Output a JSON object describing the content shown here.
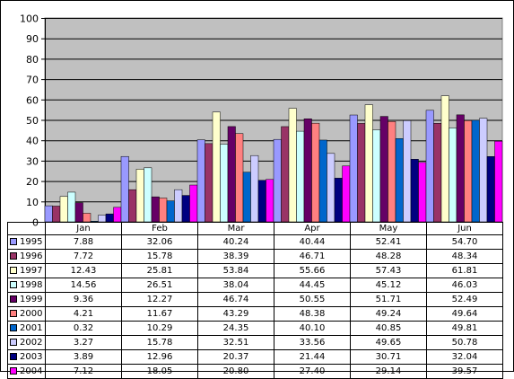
{
  "chart_data": {
    "type": "bar",
    "categories": [
      "Jan",
      "Feb",
      "Mar",
      "Apr",
      "May",
      "Jun"
    ],
    "ylim": [
      0,
      100
    ],
    "yticks": [
      0,
      10,
      20,
      30,
      40,
      50,
      60,
      70,
      80,
      90,
      100
    ],
    "grid": true,
    "legend": "data-table",
    "plot_background": "#C0C0C0",
    "series": [
      {
        "name": "1995",
        "color": "#9999FF",
        "values": [
          7.88,
          32.06,
          40.24,
          40.44,
          52.41,
          54.7
        ],
        "labels": [
          "7.88",
          "32.06",
          "40.24",
          "40.44",
          "52.41",
          "54.70"
        ]
      },
      {
        "name": "1996",
        "color": "#993366",
        "values": [
          7.72,
          15.78,
          38.39,
          46.71,
          48.28,
          48.34
        ],
        "labels": [
          "7.72",
          "15.78",
          "38.39",
          "46.71",
          "48.28",
          "48.34"
        ]
      },
      {
        "name": "1997",
        "color": "#FFFFCC",
        "values": [
          12.43,
          25.81,
          53.84,
          55.66,
          57.43,
          61.81
        ],
        "labels": [
          "12.43",
          "25.81",
          "53.84",
          "55.66",
          "57.43",
          "61.81"
        ]
      },
      {
        "name": "1998",
        "color": "#CCFFFF",
        "values": [
          14.56,
          26.51,
          38.04,
          44.45,
          45.12,
          46.03
        ],
        "labels": [
          "14.56",
          "26.51",
          "38.04",
          "44.45",
          "45.12",
          "46.03"
        ]
      },
      {
        "name": "1999",
        "color": "#660066",
        "values": [
          9.36,
          12.27,
          46.74,
          50.55,
          51.71,
          52.49
        ],
        "labels": [
          "9.36",
          "12.27",
          "46.74",
          "50.55",
          "51.71",
          "52.49"
        ]
      },
      {
        "name": "2000",
        "color": "#FF8080",
        "values": [
          4.21,
          11.67,
          43.29,
          48.38,
          49.24,
          49.64
        ],
        "labels": [
          "4.21",
          "11.67",
          "43.29",
          "48.38",
          "49.24",
          "49.64"
        ]
      },
      {
        "name": "2001",
        "color": "#0066CC",
        "values": [
          0.32,
          10.29,
          24.35,
          40.1,
          40.85,
          49.81
        ],
        "labels": [
          "0.32",
          "10.29",
          "24.35",
          "40.10",
          "40.85",
          "49.81"
        ]
      },
      {
        "name": "2002",
        "color": "#CCCCFF",
        "values": [
          3.27,
          15.78,
          32.51,
          33.56,
          49.65,
          50.78
        ],
        "labels": [
          "3.27",
          "15.78",
          "32.51",
          "33.56",
          "49.65",
          "50.78"
        ]
      },
      {
        "name": "2003",
        "color": "#000080",
        "values": [
          3.89,
          12.96,
          20.37,
          21.44,
          30.71,
          32.04
        ],
        "labels": [
          "3.89",
          "12.96",
          "20.37",
          "21.44",
          "30.71",
          "32.04"
        ]
      },
      {
        "name": "2004",
        "color": "#FF00FF",
        "values": [
          7.12,
          18.05,
          20.8,
          27.4,
          29.14,
          39.57
        ],
        "labels": [
          "7.12",
          "18.05",
          "20.80",
          "27.40",
          "29.14",
          "39.57"
        ]
      }
    ]
  }
}
